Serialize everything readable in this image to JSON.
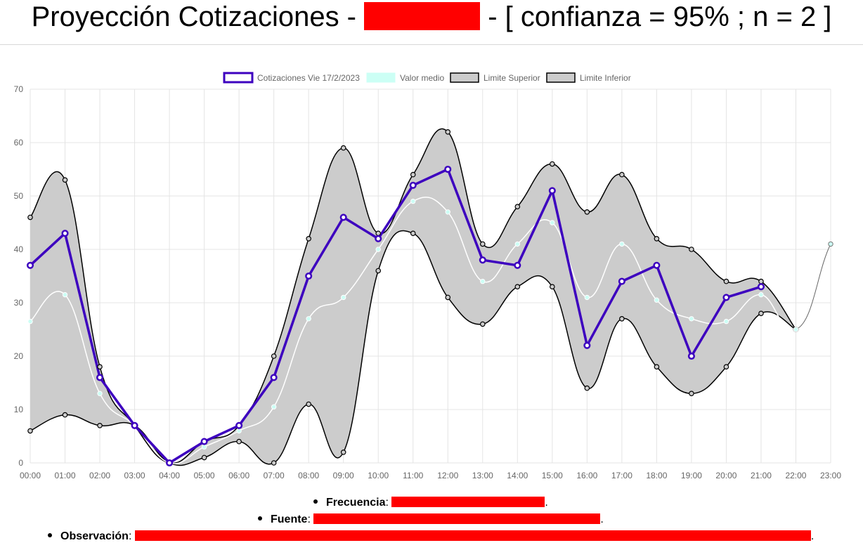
{
  "header": {
    "title_prefix": "Proyección Cotizaciones - ",
    "title_suffix": " - [ confianza = 95% ; n = 2 ]",
    "redaction_color": "#ff0000"
  },
  "chart_data": {
    "type": "line",
    "categories": [
      "00:00",
      "01:00",
      "02:00",
      "03:00",
      "04:00",
      "05:00",
      "06:00",
      "07:00",
      "08:00",
      "09:00",
      "10:00",
      "11:00",
      "12:00",
      "13:00",
      "14:00",
      "15:00",
      "16:00",
      "17:00",
      "18:00",
      "19:00",
      "20:00",
      "21:00",
      "22:00",
      "23:00"
    ],
    "series": [
      {
        "name": "Cotizaciones Vie 17/2/2023",
        "color": "#3d00bf",
        "values": [
          37,
          43,
          16,
          7,
          0,
          4,
          7,
          16,
          35,
          46,
          42,
          52,
          55,
          38,
          37,
          51,
          22,
          34,
          37,
          20,
          31,
          33,
          null,
          null
        ]
      },
      {
        "name": "Valor medio",
        "color": "#ccfff5",
        "values": [
          26.5,
          31.5,
          13,
          7,
          0,
          3,
          6,
          10.5,
          27,
          31,
          40,
          49,
          47,
          34,
          41,
          45,
          31,
          41,
          30.5,
          27,
          26.5,
          31.5,
          25,
          41
        ]
      },
      {
        "name": "Limite Superior",
        "color": "#000000",
        "fill": "#cccccc",
        "values": [
          46,
          53,
          18,
          7,
          0,
          4,
          7,
          20,
          42,
          59,
          43,
          54,
          62,
          41,
          48,
          56,
          47,
          54,
          42,
          40,
          34,
          34,
          25,
          null
        ]
      },
      {
        "name": "Limite Inferior",
        "color": "#000000",
        "fill": "#cccccc",
        "values": [
          6,
          9,
          7,
          7,
          0,
          1,
          4,
          0,
          11,
          2,
          36,
          43,
          31,
          26,
          33,
          33,
          14,
          27,
          18,
          13,
          18,
          28,
          25,
          null
        ]
      }
    ],
    "yticks": [
      0,
      10,
      20,
      30,
      40,
      50,
      60,
      70
    ],
    "ylim": [
      0,
      70
    ],
    "grid": true,
    "legend_position": "top"
  },
  "notes": {
    "frecuencia_label": "Frecuencia",
    "fuente_label": "Fuente",
    "observacion_label": "Observación",
    "separator": ":",
    "end_mark": "."
  }
}
